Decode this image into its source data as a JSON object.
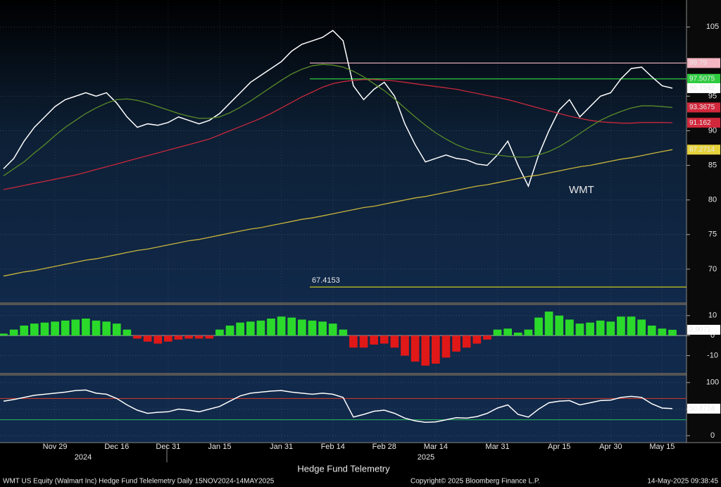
{
  "chart_data": [
    {
      "type": "line",
      "categories": [
        null,
        null,
        null,
        null,
        null,
        "Nov 29",
        null,
        null,
        null,
        null,
        null,
        "Dec 16",
        null,
        null,
        null,
        null,
        "Dec 31",
        null,
        null,
        null,
        null,
        "Jan 15",
        null,
        null,
        null,
        null,
        null,
        "Jan 31",
        null,
        null,
        null,
        null,
        "Feb 14",
        null,
        null,
        null,
        null,
        "Feb 28",
        null,
        null,
        null,
        null,
        "Mar 14",
        null,
        null,
        null,
        null,
        null,
        "Mar 31",
        null,
        null,
        null,
        null,
        null,
        "Apr 15",
        null,
        null,
        null,
        null,
        "Apr 30",
        null,
        null,
        null,
        null,
        "May 15",
        null
      ],
      "series": [
        {
          "color": "#ffffff",
          "values": [
            84.5,
            86,
            88.5,
            90.5,
            92,
            93.5,
            94.5,
            95,
            95.5,
            95,
            95.5,
            94,
            92,
            90.5,
            91,
            90.8,
            91.2,
            92,
            91.5,
            91,
            91.5,
            92.5,
            94,
            95.5,
            97,
            98,
            99,
            100,
            101.5,
            102.5,
            103,
            103.5,
            104.5,
            103,
            96.5,
            94.5,
            96,
            97,
            95,
            91,
            88,
            85.5,
            86,
            86.5,
            86,
            85.8,
            85.2,
            85,
            86.5,
            88.5,
            85,
            82,
            86.5,
            90,
            93,
            94.5,
            92,
            93.5,
            95,
            95.5,
            97.5,
            99,
            99.2,
            97.8,
            96.5,
            96.1592
          ]
        },
        {
          "color": "#c8b43c",
          "values": [
            69.0,
            69.3,
            69.6,
            69.8,
            70.1,
            70.4,
            70.7,
            71.0,
            71.3,
            71.5,
            71.8,
            72.1,
            72.4,
            72.7,
            72.9,
            73.2,
            73.5,
            73.8,
            74.1,
            74.3,
            74.6,
            74.9,
            75.2,
            75.5,
            75.8,
            76.0,
            76.3,
            76.6,
            76.9,
            77.2,
            77.4,
            77.7,
            78.0,
            78.3,
            78.6,
            78.9,
            79.1,
            79.4,
            79.7,
            80.0,
            80.3,
            80.5,
            80.8,
            81.1,
            81.4,
            81.7,
            82.0,
            82.2,
            82.5,
            82.8,
            83.1,
            83.4,
            83.6,
            83.9,
            84.2,
            84.5,
            84.8,
            85.0,
            85.3,
            85.6,
            85.9,
            86.1,
            86.4,
            86.7,
            87.0,
            87.2714
          ]
        },
        {
          "color": "#c8283c",
          "values": [
            81.5,
            81.8,
            82.1,
            82.4,
            82.7,
            83.0,
            83.3,
            83.6,
            84.0,
            84.4,
            84.8,
            85.2,
            85.6,
            86.0,
            86.4,
            86.8,
            87.2,
            87.6,
            88.0,
            88.4,
            88.8,
            89.4,
            90.0,
            90.6,
            91.2,
            91.8,
            92.5,
            93.3,
            94.1,
            94.9,
            95.6,
            96.3,
            96.8,
            97.1,
            97.3,
            97.4,
            97.4,
            97.3,
            97.2,
            97.0,
            96.8,
            96.6,
            96.4,
            96.2,
            96.0,
            95.7,
            95.4,
            95.1,
            94.8,
            94.5,
            94.1,
            93.7,
            93.3,
            92.9,
            92.5,
            92.1,
            91.8,
            91.5,
            91.3,
            91.2,
            91.1,
            91.1,
            91.2,
            91.2,
            91.2,
            91.162
          ]
        },
        {
          "color": "#5a8c28",
          "values": [
            83.5,
            84.5,
            85.5,
            86.8,
            88.0,
            89.3,
            90.5,
            91.5,
            92.5,
            93.3,
            94.0,
            94.5,
            94.6,
            94.4,
            94.0,
            93.5,
            93.0,
            92.5,
            92.1,
            91.8,
            91.8,
            92.0,
            92.6,
            93.4,
            94.3,
            95.3,
            96.3,
            97.3,
            98.2,
            98.9,
            99.4,
            99.6,
            99.5,
            99.2,
            98.6,
            97.8,
            96.8,
            95.8,
            94.6,
            93.3,
            92.0,
            90.8,
            89.7,
            88.8,
            88.0,
            87.4,
            87.0,
            86.7,
            86.5,
            86.3,
            86.2,
            86.2,
            86.5,
            87.0,
            87.7,
            88.6,
            89.6,
            90.6,
            91.5,
            92.2,
            92.8,
            93.3,
            93.6,
            93.6,
            93.5,
            93.3675
          ]
        }
      ],
      "label_colors": [
        "#ffffff",
        "#e6d23c",
        "#d2283c",
        "#d2283c"
      ],
      "levels": [
        {
          "value": 99.79,
          "color": "#f4b6c2"
        },
        {
          "value": 97.5075,
          "color": "#2ecc40"
        },
        {
          "value": 67.4153,
          "color": "#c8c81e"
        }
      ],
      "annotation": "WMT",
      "ylim": [
        65.1,
        108.9
      ],
      "yticks": [
        70,
        75,
        80,
        85,
        90,
        95,
        105
      ],
      "grid": true
    },
    {
      "type": "bar",
      "values": [
        1,
        3,
        5,
        6,
        6.5,
        7,
        7.5,
        8,
        8.5,
        7.5,
        7,
        6,
        3,
        -1.5,
        -3,
        -4,
        -3,
        -2,
        -1.5,
        -1.5,
        -1.5,
        3,
        5,
        6.5,
        7,
        7.5,
        8.5,
        9.5,
        9,
        8,
        7.5,
        7,
        6,
        3,
        -6,
        -6,
        -4.5,
        -4,
        -6,
        -10,
        -13,
        -15,
        -14,
        -11,
        -8,
        -6,
        -4,
        -2,
        3,
        3.5,
        1.5,
        3,
        9,
        12,
        10,
        8,
        6,
        6.5,
        7.5,
        7,
        9.5,
        9.5,
        8,
        5,
        3.5,
        2.9071
      ],
      "pos_color": "#2bd92b",
      "neg_color": "#e01818",
      "ylim": [
        -18.6,
        15.2
      ],
      "yticks": [
        -10,
        0,
        10
      ],
      "grid": true
    },
    {
      "type": "line",
      "series": [
        {
          "color": "#ffffff",
          "values": [
            65,
            68,
            72,
            76,
            78,
            80,
            82,
            85,
            86,
            80,
            78,
            70,
            58,
            48,
            42,
            44,
            45,
            50,
            48,
            45,
            50,
            55,
            65,
            75,
            80,
            82,
            84,
            85,
            82,
            80,
            78,
            80,
            78,
            72,
            35,
            40,
            46,
            48,
            42,
            33,
            28,
            25,
            26,
            30,
            34,
            33,
            36,
            42,
            52,
            58,
            40,
            35,
            50,
            62,
            65,
            66,
            58,
            62,
            66,
            67,
            72,
            74,
            72,
            60,
            52,
            50.8714
          ]
        }
      ],
      "levels": [
        {
          "value": 70,
          "color": "#c0392b"
        },
        {
          "value": 30,
          "color": "#27ae60"
        }
      ],
      "ylim": [
        -13,
        113
      ],
      "yticks": [
        0,
        50,
        100
      ],
      "grid": true
    }
  ],
  "years": [
    "2024",
    "2025"
  ],
  "footer": {
    "title": "Hedge Fund Telemetry",
    "left": "WMT US Equity (Walmart Inc) Hedge Fund Telelemetry  Daily 15NOV2024-14MAY2025",
    "center": "Copyright© 2025 Bloomberg Finance L.P.",
    "right": "14-May-2025 09:38:45"
  }
}
